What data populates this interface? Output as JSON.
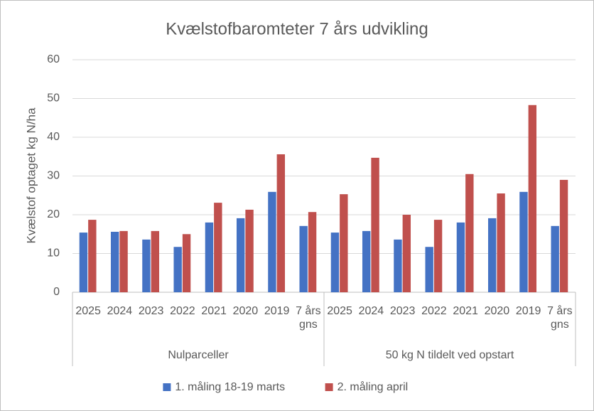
{
  "chart_data": {
    "type": "bar",
    "title": "Kvælstofbaromteter 7 års udvikling",
    "y_label": "Kvælstof optaget kg N/ha",
    "categories": [
      "2025",
      "2024",
      "2023",
      "2022",
      "2021",
      "2020",
      "2019",
      "7 års gns",
      "2025",
      "2024",
      "2023",
      "2022",
      "2021",
      "2020",
      "2019",
      "7 års gns"
    ],
    "category_groups": [
      "Nulparceller",
      "50 kg N tildelt ved opstart"
    ],
    "series": [
      {
        "name": "1. måling 18-19 marts",
        "color": "#4472c4",
        "values": [
          15.4,
          15.6,
          13.6,
          11.7,
          18.0,
          19.1,
          25.9,
          17.1,
          15.4,
          15.8,
          13.6,
          11.7,
          18.0,
          19.1,
          25.9,
          17.1
        ]
      },
      {
        "name": "2. måling april",
        "color": "#c0504d",
        "values": [
          18.7,
          15.8,
          15.8,
          15.0,
          23.1,
          21.3,
          35.6,
          20.7,
          25.3,
          34.7,
          20.0,
          18.7,
          30.5,
          25.5,
          48.3,
          29.0
        ]
      }
    ],
    "ylim": [
      0,
      60
    ],
    "yticks": [
      0,
      10,
      20,
      30,
      40,
      50,
      60
    ],
    "grid": true,
    "legend": "bottom"
  }
}
